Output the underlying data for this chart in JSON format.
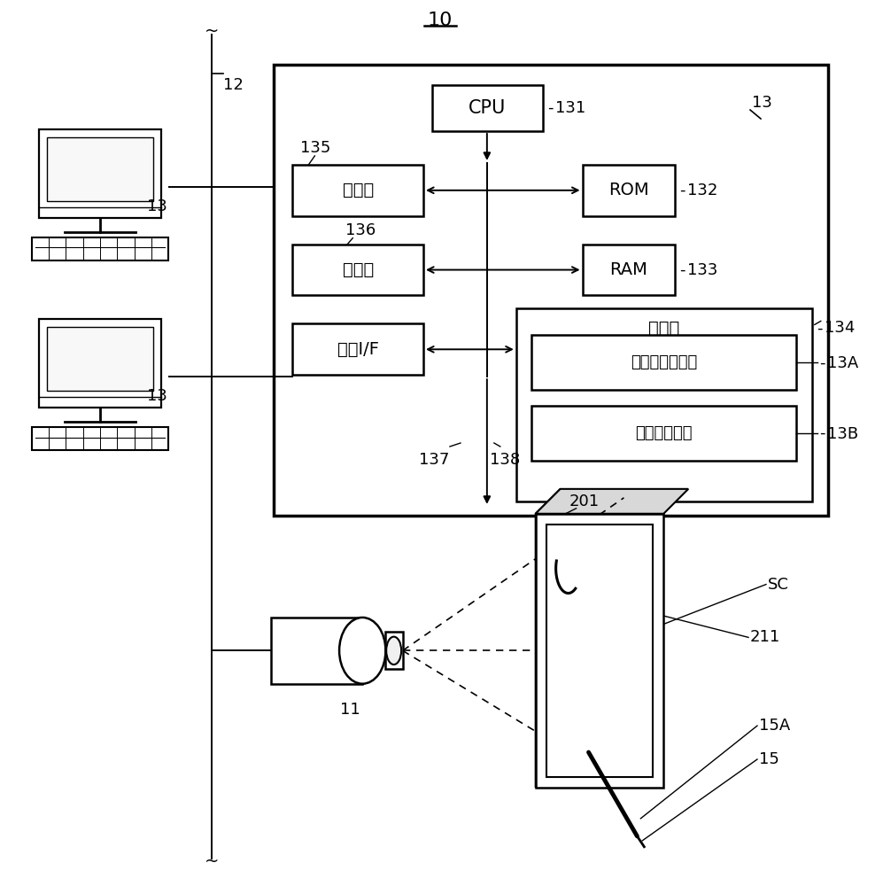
{
  "bg_color": "#ffffff",
  "lc": "#000000",
  "title": "10",
  "label_12": "12",
  "label_13_top": "13",
  "label_13_mid": "13",
  "label_13_bot": "13",
  "label_131": "131",
  "label_132": "132",
  "label_133": "133",
  "label_134": "134",
  "label_135": "135",
  "label_136": "136",
  "label_137": "137",
  "label_138": "138",
  "label_13A": "13A",
  "label_13B": "13B",
  "label_201": "201",
  "label_SC": "SC",
  "label_211": "211",
  "label_15A": "15A",
  "label_15": "15",
  "label_11": "11",
  "cpu_text": "CPU",
  "rom_text": "ROM",
  "ram_text": "RAM",
  "input_text": "输入部",
  "output_text": "输出部",
  "comm_text": "通信I/F",
  "storage_text": "存储部",
  "proj_prog_text": "投影仪控制程序",
  "disp_data_text": "显示图像数据"
}
